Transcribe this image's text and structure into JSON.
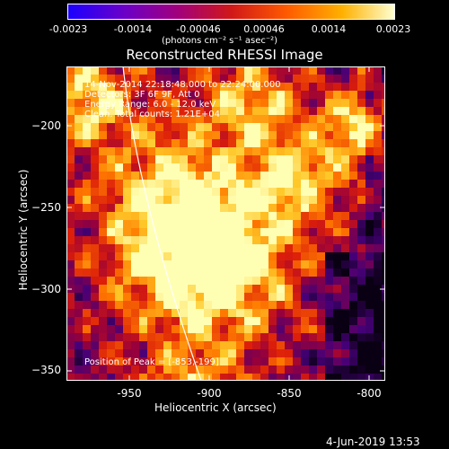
{
  "colorbar": {
    "ticks": [
      "-0.0023",
      "-0.0014",
      "-0.00046",
      "0.00046",
      "0.0014",
      "0.0023"
    ],
    "unit_label": "(photons cm⁻² s⁻¹ asec⁻²)",
    "colormap": [
      "#1a00ff",
      "#6a00c8",
      "#a3007a",
      "#d01818",
      "#ff5a00",
      "#ffb000",
      "#ffff90"
    ]
  },
  "chart_data": {
    "type": "heatmap",
    "title": "Reconstructed RHESSI Image",
    "xlabel": "Heliocentric X (arcsec)",
    "ylabel": "Heliocentric Y (arcsec)",
    "xlim": [
      -985,
      -795
    ],
    "ylim": [
      -355,
      -170
    ],
    "x_ticks": [
      -950,
      -900,
      -850,
      -800
    ],
    "x_tick_labels": [
      "-950",
      "-900",
      "-850",
      "-800"
    ],
    "y_ticks": [
      -200,
      -250,
      -300,
      -350
    ],
    "y_tick_labels": [
      "−200",
      "−250",
      "−300",
      "−350"
    ],
    "peak_position": [
      -853,
      -199
    ],
    "limb_curve": "solar limb drawn as white line",
    "annotations": [
      "14-Nov-2014 22:18:48.000 to 22:24:00.000",
      "Detectors: 3F 6F 9F, Att 0",
      "Energy Range: 6.0 - 12.0 keV",
      "Clean. Total counts: 1.21E+04"
    ],
    "peak_label": "Position of Peak = [-853,-199]"
  },
  "footer": {
    "timestamp": "4-Jun-2019 13:53"
  }
}
